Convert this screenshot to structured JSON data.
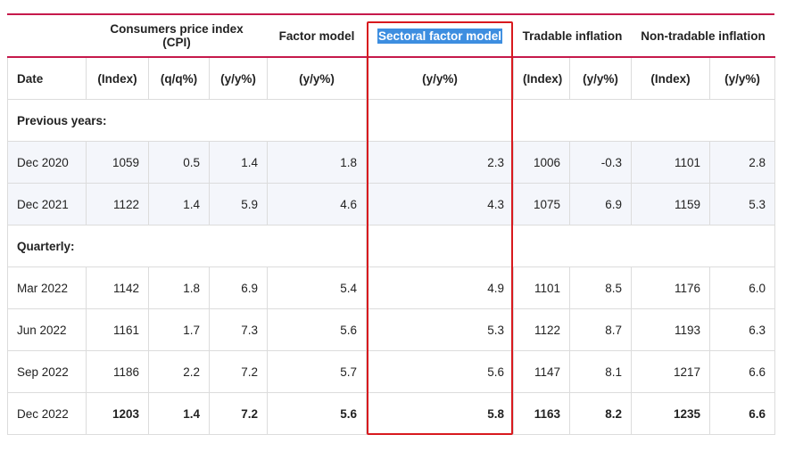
{
  "groups": {
    "cpi": "Consumers price index (CPI)",
    "factor": "Factor model",
    "sectoral": "Sectoral factor model",
    "tradable": "Tradable inflation",
    "nontradable": "Non-tradable inflation"
  },
  "units": [
    "Date",
    "(Index)",
    "(q/q%)",
    "(y/y%)",
    "(y/y%)",
    "(y/y%)",
    "(Index)",
    "(y/y%)",
    "(Index)",
    "(y/y%)"
  ],
  "sections": {
    "previous": "Previous years:",
    "quarterly": "Quarterly:"
  },
  "rows": [
    [
      "Dec 2020",
      "1059",
      "0.5",
      "1.4",
      "1.8",
      "2.3",
      "1006",
      "-0.3",
      "1101",
      "2.8"
    ],
    [
      "Dec 2021",
      "1122",
      "1.4",
      "5.9",
      "4.6",
      "4.3",
      "1075",
      "6.9",
      "1159",
      "5.3"
    ],
    [
      "Mar 2022",
      "1142",
      "1.8",
      "6.9",
      "5.4",
      "4.9",
      "1101",
      "8.5",
      "1176",
      "6.0"
    ],
    [
      "Jun 2022",
      "1161",
      "1.7",
      "7.3",
      "5.6",
      "5.3",
      "1122",
      "8.7",
      "1193",
      "6.3"
    ],
    [
      "Sep 2022",
      "1186",
      "2.2",
      "7.2",
      "5.7",
      "5.6",
      "1147",
      "8.1",
      "1217",
      "6.6"
    ],
    [
      "Dec 2022",
      "1203",
      "1.4",
      "7.2",
      "5.6",
      "5.8",
      "1163",
      "8.2",
      "1235",
      "6.6"
    ]
  ],
  "colors": {
    "accent": "#c6194b",
    "highlight_box": "#d8191e",
    "selection": "#3d8ee0",
    "row_shade": "#f4f6fb"
  }
}
